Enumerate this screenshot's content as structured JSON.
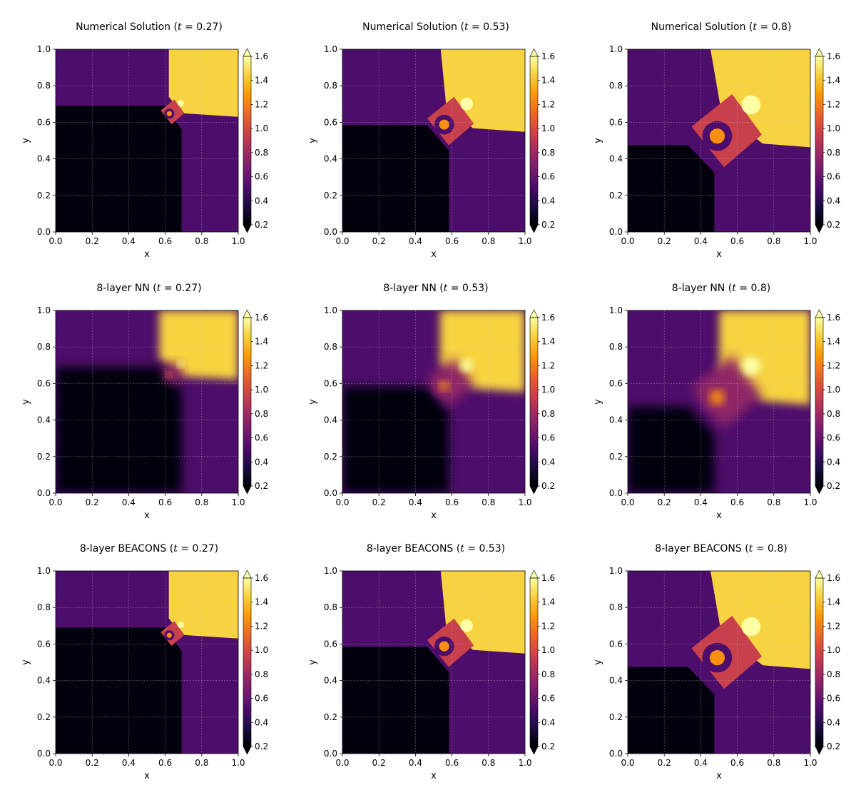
{
  "chart_data": [
    {
      "type": "heatmap",
      "title_prefix": "Numerical Solution",
      "t": "0.27",
      "model": "numerical",
      "time": 0.27,
      "xlabel": "x",
      "ylabel": "y",
      "xlim": [
        0,
        1
      ],
      "ylim": [
        0,
        1
      ],
      "xticks": [
        "0.0",
        "0.2",
        "0.4",
        "0.6",
        "0.8",
        "1.0"
      ],
      "yticks": [
        "0.0",
        "0.2",
        "0.4",
        "0.6",
        "0.8",
        "1.0"
      ],
      "colorbar": {
        "range": [
          0.2,
          1.6
        ],
        "ticks": [
          "0.2",
          "0.4",
          "0.6",
          "0.8",
          "1.0",
          "1.2",
          "1.4",
          "1.6"
        ],
        "extend": "both"
      },
      "grid": true
    },
    {
      "type": "heatmap",
      "title_prefix": "Numerical Solution",
      "t": "0.53",
      "model": "numerical",
      "time": 0.53,
      "xlabel": "x",
      "ylabel": "y",
      "xlim": [
        0,
        1
      ],
      "ylim": [
        0,
        1
      ],
      "xticks": [
        "0.0",
        "0.2",
        "0.4",
        "0.6",
        "0.8",
        "1.0"
      ],
      "yticks": [
        "0.0",
        "0.2",
        "0.4",
        "0.6",
        "0.8",
        "1.0"
      ],
      "colorbar": {
        "range": [
          0.2,
          1.6
        ],
        "ticks": [
          "0.2",
          "0.4",
          "0.6",
          "0.8",
          "1.0",
          "1.2",
          "1.4",
          "1.6"
        ],
        "extend": "both"
      },
      "grid": true
    },
    {
      "type": "heatmap",
      "title_prefix": "Numerical Solution",
      "t": "0.8",
      "model": "numerical",
      "time": 0.8,
      "xlabel": "x",
      "ylabel": "y",
      "xlim": [
        0,
        1
      ],
      "ylim": [
        0,
        1
      ],
      "xticks": [
        "0.0",
        "0.2",
        "0.4",
        "0.6",
        "0.8",
        "1.0"
      ],
      "yticks": [
        "0.0",
        "0.2",
        "0.4",
        "0.6",
        "0.8",
        "1.0"
      ],
      "colorbar": {
        "range": [
          0.2,
          1.6
        ],
        "ticks": [
          "0.2",
          "0.4",
          "0.6",
          "0.8",
          "1.0",
          "1.2",
          "1.4",
          "1.6"
        ],
        "extend": "both"
      },
      "grid": true
    },
    {
      "type": "heatmap",
      "title_prefix": "8-layer NN",
      "t": "0.27",
      "model": "nn",
      "time": 0.27,
      "xlabel": "x",
      "ylabel": "y",
      "xlim": [
        0,
        1
      ],
      "ylim": [
        0,
        1
      ],
      "xticks": [
        "0.0",
        "0.2",
        "0.4",
        "0.6",
        "0.8",
        "1.0"
      ],
      "yticks": [
        "0.0",
        "0.2",
        "0.4",
        "0.6",
        "0.8",
        "1.0"
      ],
      "colorbar": {
        "range": [
          0.2,
          1.6
        ],
        "ticks": [
          "0.2",
          "0.4",
          "0.6",
          "0.8",
          "1.0",
          "1.2",
          "1.4",
          "1.6"
        ],
        "extend": "both"
      },
      "grid": true
    },
    {
      "type": "heatmap",
      "title_prefix": "8-layer NN",
      "t": "0.53",
      "model": "nn",
      "time": 0.53,
      "xlabel": "x",
      "ylabel": "y",
      "xlim": [
        0,
        1
      ],
      "ylim": [
        0,
        1
      ],
      "xticks": [
        "0.0",
        "0.2",
        "0.4",
        "0.6",
        "0.8",
        "1.0"
      ],
      "yticks": [
        "0.0",
        "0.2",
        "0.4",
        "0.6",
        "0.8",
        "1.0"
      ],
      "colorbar": {
        "range": [
          0.2,
          1.6
        ],
        "ticks": [
          "0.2",
          "0.4",
          "0.6",
          "0.8",
          "1.0",
          "1.2",
          "1.4",
          "1.6"
        ],
        "extend": "both"
      },
      "grid": true
    },
    {
      "type": "heatmap",
      "title_prefix": "8-layer NN",
      "t": "0.8",
      "model": "nn",
      "time": 0.8,
      "xlabel": "x",
      "ylabel": "y",
      "xlim": [
        0,
        1
      ],
      "ylim": [
        0,
        1
      ],
      "xticks": [
        "0.0",
        "0.2",
        "0.4",
        "0.6",
        "0.8",
        "1.0"
      ],
      "yticks": [
        "0.0",
        "0.2",
        "0.4",
        "0.6",
        "0.8",
        "1.0"
      ],
      "colorbar": {
        "range": [
          0.2,
          1.6
        ],
        "ticks": [
          "0.2",
          "0.4",
          "0.6",
          "0.8",
          "1.0",
          "1.2",
          "1.4",
          "1.6"
        ],
        "extend": "both"
      },
      "grid": true
    },
    {
      "type": "heatmap",
      "title_prefix": "8-layer BEACONS",
      "t": "0.27",
      "model": "beacons",
      "time": 0.27,
      "xlabel": "x",
      "ylabel": "y",
      "xlim": [
        0,
        1
      ],
      "ylim": [
        0,
        1
      ],
      "xticks": [
        "0.0",
        "0.2",
        "0.4",
        "0.6",
        "0.8",
        "1.0"
      ],
      "yticks": [
        "0.0",
        "0.2",
        "0.4",
        "0.6",
        "0.8",
        "1.0"
      ],
      "colorbar": {
        "range": [
          0.2,
          1.6
        ],
        "ticks": [
          "0.2",
          "0.4",
          "0.6",
          "0.8",
          "1.0",
          "1.2",
          "1.4",
          "1.6"
        ],
        "extend": "both"
      },
      "grid": true
    },
    {
      "type": "heatmap",
      "title_prefix": "8-layer BEACONS",
      "t": "0.53",
      "model": "beacons",
      "time": 0.53,
      "xlabel": "x",
      "ylabel": "y",
      "xlim": [
        0,
        1
      ],
      "ylim": [
        0,
        1
      ],
      "xticks": [
        "0.0",
        "0.2",
        "0.4",
        "0.6",
        "0.8",
        "1.0"
      ],
      "yticks": [
        "0.0",
        "0.2",
        "0.4",
        "0.6",
        "0.8",
        "1.0"
      ],
      "colorbar": {
        "range": [
          0.2,
          1.6
        ],
        "ticks": [
          "0.2",
          "0.4",
          "0.6",
          "0.8",
          "1.0",
          "1.2",
          "1.4",
          "1.6"
        ],
        "extend": "both"
      },
      "grid": true
    },
    {
      "type": "heatmap",
      "title_prefix": "8-layer BEACONS",
      "t": "0.8",
      "model": "beacons",
      "time": 0.8,
      "xlabel": "x",
      "ylabel": "y",
      "xlim": [
        0,
        1
      ],
      "ylim": [
        0,
        1
      ],
      "xticks": [
        "0.0",
        "0.2",
        "0.4",
        "0.6",
        "0.8",
        "1.0"
      ],
      "yticks": [
        "0.0",
        "0.2",
        "0.4",
        "0.6",
        "0.8",
        "1.0"
      ],
      "colorbar": {
        "range": [
          0.2,
          1.6
        ],
        "ticks": [
          "0.2",
          "0.4",
          "0.6",
          "0.8",
          "1.0",
          "1.2",
          "1.4",
          "1.6"
        ],
        "extend": "both"
      },
      "grid": true
    }
  ],
  "colormap": {
    "name": "inferno",
    "stops": [
      "#000004",
      "#1b0c41",
      "#4a0c6b",
      "#781c6d",
      "#a52c60",
      "#cf4446",
      "#ed6925",
      "#fb9b06",
      "#f7d13d",
      "#fcffa4"
    ]
  }
}
